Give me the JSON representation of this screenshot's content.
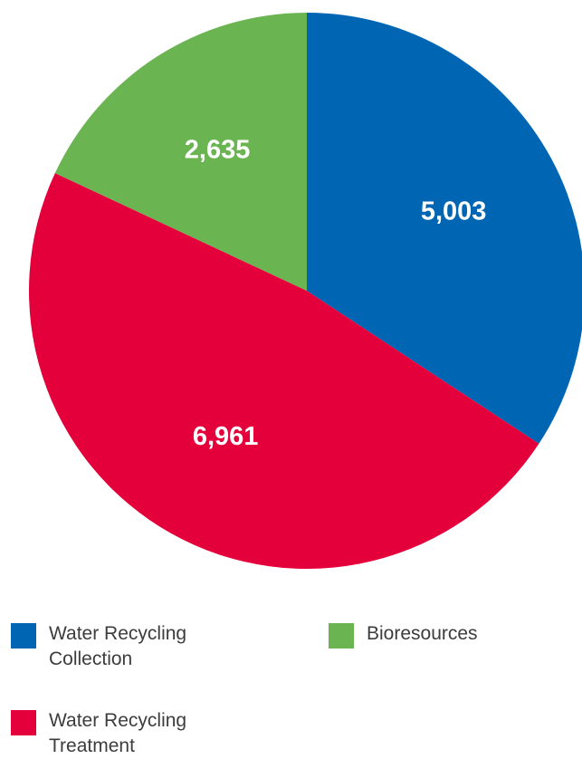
{
  "chart_data": {
    "type": "pie",
    "categories": [
      "Water Recycling Collection",
      "Water Recycling Treatment",
      "Bioresources"
    ],
    "values": [
      5003,
      6961,
      2635
    ],
    "data_labels": [
      "5,003",
      "6,961",
      "2,635"
    ],
    "colors": [
      "#0066b3",
      "#e4003b",
      "#6ab452"
    ],
    "start_angle_deg": 0,
    "direction": "clockwise",
    "legend_position": "bottom",
    "title": ""
  },
  "legend": {
    "items": [
      {
        "label": "Water Recycling\nCollection",
        "color": "#0066b3"
      },
      {
        "label": "Water Recycling\nTreatment",
        "color": "#e4003b"
      },
      {
        "label": "Bioresources",
        "color": "#6ab452"
      }
    ]
  }
}
